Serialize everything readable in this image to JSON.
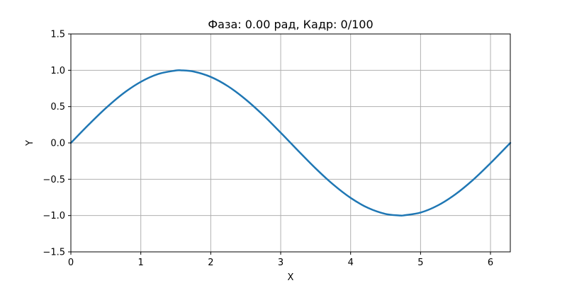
{
  "chart_data": {
    "type": "line",
    "title": "Фаза: 0.00 рад, Кадр: 0/100",
    "xlabel": "X",
    "ylabel": "Y",
    "xlim": [
      0,
      6.283185
    ],
    "ylim": [
      -1.5,
      1.5
    ],
    "grid": true,
    "x_ticks": [
      0,
      1,
      2,
      3,
      4,
      5,
      6
    ],
    "x_tick_labels": [
      "0",
      "1",
      "2",
      "3",
      "4",
      "5",
      "6"
    ],
    "y_ticks": [
      -1.5,
      -1.0,
      -0.5,
      0.0,
      0.5,
      1.0,
      1.5
    ],
    "y_tick_labels": [
      "−1.5",
      "−1.0",
      "−0.5",
      "0.0",
      "0.5",
      "1.0",
      "1.5"
    ],
    "series": [
      {
        "color": "#1f77b4",
        "x": [
          0,
          0.25,
          0.5,
          0.75,
          1.0,
          1.25,
          1.5,
          1.5708,
          1.75,
          2.0,
          2.25,
          2.5,
          2.75,
          3.0,
          3.1416,
          3.25,
          3.5,
          3.75,
          4.0,
          4.25,
          4.5,
          4.7124,
          4.75,
          5.0,
          5.25,
          5.5,
          5.75,
          6.0,
          6.2832
        ],
        "y": [
          0,
          0.247,
          0.479,
          0.682,
          0.841,
          0.949,
          0.997,
          1.0,
          0.984,
          0.909,
          0.778,
          0.598,
          0.382,
          0.141,
          0.0,
          -0.108,
          -0.351,
          -0.572,
          -0.757,
          -0.895,
          -0.978,
          -1.0,
          -0.999,
          -0.959,
          -0.859,
          -0.706,
          -0.509,
          -0.279,
          0.0
        ]
      }
    ]
  }
}
